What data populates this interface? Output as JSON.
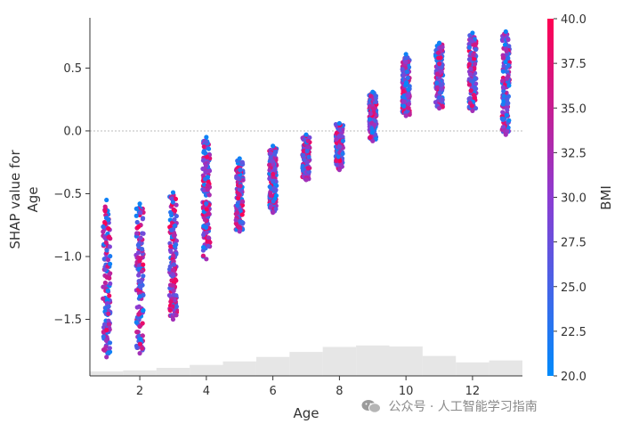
{
  "chart_data": {
    "type": "scatter",
    "xlabel": "Age",
    "ylabel": "SHAP value for\nAge",
    "xlim": [
      0.5,
      13.5
    ],
    "ylim": [
      -1.95,
      0.9
    ],
    "xticks": [
      2,
      4,
      6,
      8,
      10,
      12
    ],
    "yticks": [
      -1.5,
      -1.0,
      -0.5,
      0.0,
      0.5
    ],
    "grid": false,
    "zero_line": true,
    "colorbar": {
      "label": "BMI",
      "min": 20.0,
      "max": 40.0,
      "ticks": [
        "20.0",
        "22.5",
        "25.0",
        "27.5",
        "30.0",
        "32.5",
        "35.0",
        "37.5",
        "40.0"
      ],
      "color_low": "#008afb",
      "color_high": "#ff0052"
    },
    "point_color_low": "#008afb",
    "point_color_high": "#ff0052",
    "strips": [
      {
        "x": 1,
        "y_min": -1.8,
        "y_max": -0.55
      },
      {
        "x": 2,
        "y_min": -1.77,
        "y_max": -0.58
      },
      {
        "x": 3,
        "y_min": -1.5,
        "y_max": -0.49
      },
      {
        "x": 4,
        "y_min": -1.02,
        "y_max": -0.05
      },
      {
        "x": 5,
        "y_min": -0.8,
        "y_max": -0.22
      },
      {
        "x": 6,
        "y_min": -0.65,
        "y_max": -0.12
      },
      {
        "x": 7,
        "y_min": -0.39,
        "y_max": -0.03
      },
      {
        "x": 8,
        "y_min": -0.31,
        "y_max": 0.06
      },
      {
        "x": 9,
        "y_min": -0.08,
        "y_max": 0.31
      },
      {
        "x": 10,
        "y_min": 0.12,
        "y_max": 0.61
      },
      {
        "x": 11,
        "y_min": 0.18,
        "y_max": 0.7
      },
      {
        "x": 12,
        "y_min": 0.16,
        "y_max": 0.78
      },
      {
        "x": 13,
        "y_min": -0.03,
        "y_max": 0.79
      }
    ],
    "histogram": {
      "color": "#e6e6e6",
      "bins": [
        {
          "x0": 0.5,
          "x1": 1.5,
          "count": 0.09
        },
        {
          "x0": 1.5,
          "x1": 2.5,
          "count": 0.11
        },
        {
          "x0": 2.5,
          "x1": 3.5,
          "count": 0.16
        },
        {
          "x0": 3.5,
          "x1": 4.5,
          "count": 0.22
        },
        {
          "x0": 4.5,
          "x1": 5.5,
          "count": 0.29
        },
        {
          "x0": 5.5,
          "x1": 6.5,
          "count": 0.38
        },
        {
          "x0": 6.5,
          "x1": 7.5,
          "count": 0.48
        },
        {
          "x0": 7.5,
          "x1": 8.5,
          "count": 0.58
        },
        {
          "x0": 8.5,
          "x1": 9.5,
          "count": 0.61
        },
        {
          "x0": 9.5,
          "x1": 10.5,
          "count": 0.59
        },
        {
          "x0": 10.5,
          "x1": 11.5,
          "count": 0.4
        },
        {
          "x0": 11.5,
          "x1": 12.5,
          "count": 0.27
        },
        {
          "x0": 12.5,
          "x1": 13.5,
          "count": 0.31
        }
      ]
    }
  },
  "watermark": {
    "text": "公众号 · 人工智能学习指南",
    "icon": "wechat-icon"
  }
}
